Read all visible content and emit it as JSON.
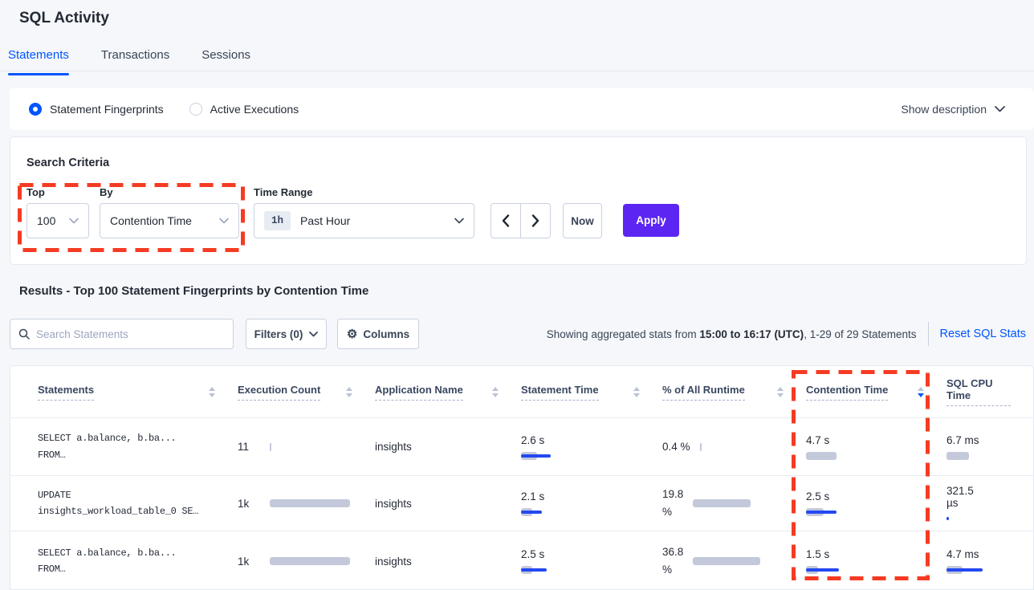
{
  "colors": {
    "accent_blue": "#0055FF",
    "apply_purple": "#5C25F2",
    "annotation_red": "#F53B23",
    "bar_gray": "#C3C9DB",
    "bar_blue": "#2349F0"
  },
  "header": {
    "title": "SQL Activity",
    "tabs": [
      {
        "label": "Statements"
      },
      {
        "label": "Transactions"
      },
      {
        "label": "Sessions"
      }
    ]
  },
  "view_toggle": {
    "fingerprints_label": "Statement Fingerprints",
    "active_executions_label": "Active Executions",
    "show_description_label": "Show description"
  },
  "search_criteria": {
    "title": "Search Criteria",
    "top_label": "Top",
    "top_value": "100",
    "by_label": "By",
    "by_value": "Contention Time",
    "time_range_label": "Time Range",
    "time_range_badge": "1h",
    "time_range_value": "Past Hour",
    "now_label": "Now",
    "apply_label": "Apply"
  },
  "results": {
    "title": "Results - Top 100 Statement Fingerprints by Contention Time",
    "search_placeholder": "Search Statements",
    "filters_label": "Filters (0)",
    "columns_label": "Columns",
    "stats_prefix": "Showing aggregated stats from ",
    "stats_bold": "15:00 to 16:17 (UTC)",
    "stats_suffix": ", 1-29 of 29 Statements",
    "reset_label": "Reset SQL Stats"
  },
  "table": {
    "columns": [
      {
        "label": "Statements"
      },
      {
        "label": "Execution Count"
      },
      {
        "label": "Application Name"
      },
      {
        "label": "Statement Time"
      },
      {
        "label": "% of All Runtime"
      },
      {
        "label": "Contention Time",
        "sorted": "desc"
      },
      {
        "label": "SQL CPU Time"
      }
    ],
    "rows": [
      {
        "statement_line1": "SELECT a.balance, b.ba...",
        "statement_line2": "FROM…",
        "exec": {
          "value": "11",
          "bar_gray": 2,
          "bar_blue": 0
        },
        "application": "insights",
        "stmt_time": {
          "value": "2.6 s",
          "bar_gray": 20,
          "bar_blue": 37
        },
        "runtime": {
          "line1": "0.4 %",
          "line2": "",
          "bar_gray": 2
        },
        "contention": {
          "value": "4.7 s",
          "bar_gray": 38,
          "bar_blue": 0
        },
        "cpu": {
          "line1": "6.7 ms",
          "line2": "",
          "bar_gray": 28,
          "bar_blue": 0
        }
      },
      {
        "statement_line1": "UPDATE",
        "statement_line2": "insights_workload_table_0 SE…",
        "exec": {
          "value": "1k",
          "bar_gray": 100,
          "bar_blue": 0
        },
        "application": "insights",
        "stmt_time": {
          "value": "2.1 s",
          "bar_gray": 14,
          "bar_blue": 26
        },
        "runtime": {
          "line1": "19.8",
          "line2": "%",
          "bar_gray": 72
        },
        "contention": {
          "value": "2.5 s",
          "bar_gray": 22,
          "bar_blue": 38
        },
        "cpu": {
          "line1": "321.5",
          "line2": "µs",
          "bar_gray": 0,
          "bar_blue": 3
        }
      },
      {
        "statement_line1": "SELECT a.balance, b.ba...",
        "statement_line2": "FROM…",
        "exec": {
          "value": "1k",
          "bar_gray": 100,
          "bar_blue": 0
        },
        "application": "insights",
        "stmt_time": {
          "value": "2.5 s",
          "bar_gray": 14,
          "bar_blue": 32
        },
        "runtime": {
          "line1": "36.8",
          "line2": "%",
          "bar_gray": 84
        },
        "contention": {
          "value": "1.5 s",
          "bar_gray": 15,
          "bar_blue": 41
        },
        "cpu": {
          "line1": "4.7 ms",
          "line2": "",
          "bar_gray": 20,
          "bar_blue": 45
        }
      }
    ]
  }
}
